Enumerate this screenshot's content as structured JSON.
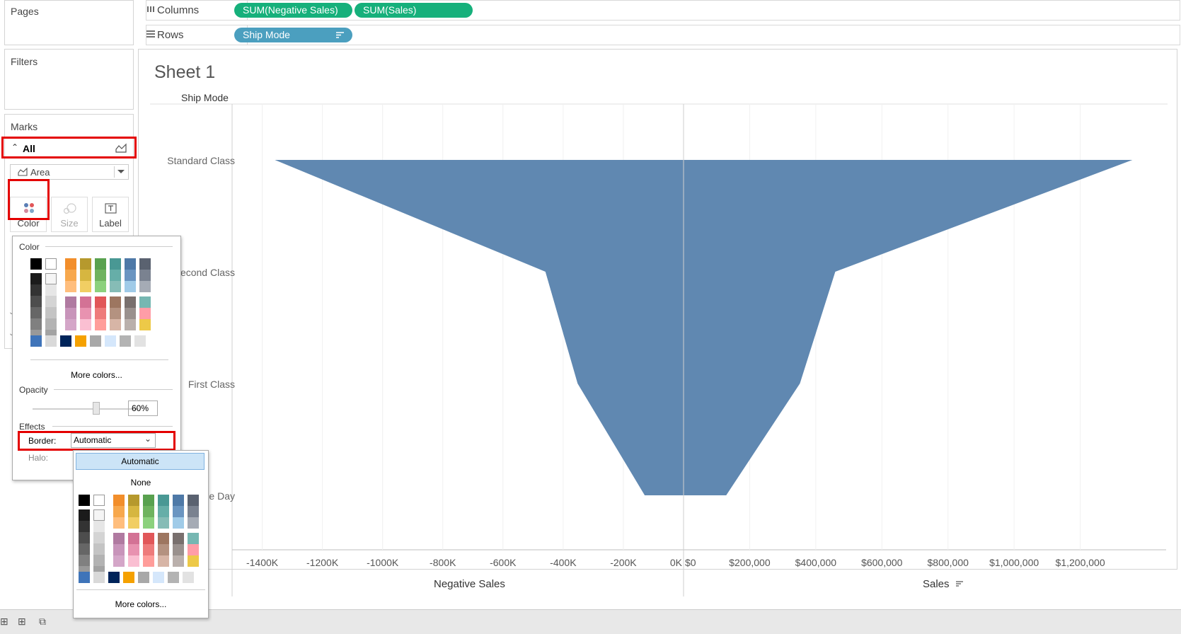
{
  "left_panel": {
    "pages_title": "Pages",
    "filters_title": "Filters",
    "marks_title": "Marks",
    "marks_all_label": "All",
    "mark_type": "Area",
    "mark_buttons": {
      "color": "Color",
      "size": "Size",
      "label": "Label"
    }
  },
  "shelves": {
    "columns_label": "Columns",
    "rows_label": "Rows",
    "columns_pills": [
      "SUM(Negative Sales)",
      "SUM(Sales)"
    ],
    "rows_pills": [
      "Ship Mode"
    ]
  },
  "sheet": {
    "title": "Sheet 1",
    "row_header": "Ship Mode"
  },
  "color_popup": {
    "color_section": "Color",
    "more_colors": "More colors...",
    "opacity_section": "Opacity",
    "opacity_value": "60%",
    "opacity_fraction": 0.6,
    "effects_section": "Effects",
    "border_label": "Border:",
    "border_value": "Automatic",
    "halo_label": "Halo:"
  },
  "border_dropdown": {
    "options": [
      "Automatic",
      "None"
    ],
    "selected": "Automatic",
    "more_colors": "More colors..."
  },
  "palette": {
    "mono_top": [
      "#000000",
      "#ffffff"
    ],
    "gray_dark": [
      "#1b1b1b",
      "#333333",
      "#4d4d4d",
      "#666666",
      "#808080",
      "#999999"
    ],
    "gray_light": [
      "#f5f5f5",
      "#e6e6e6",
      "#d4d4d4",
      "#c4c4c4",
      "#b3b3b3",
      "#a3a3a3"
    ],
    "columns_top": [
      [
        "#f28e2b",
        "#f7a84d",
        "#ffbe7d"
      ],
      [
        "#b6992d",
        "#d6b640",
        "#f1ce63"
      ],
      [
        "#59a14f",
        "#6fb35f",
        "#8cd17d"
      ],
      [
        "#499894",
        "#66aea8",
        "#86bcb6"
      ],
      [
        "#4e79a7",
        "#6a95c1",
        "#a0cbe8"
      ],
      [
        "#5a6270",
        "#7a8290",
        "#a5abb5"
      ]
    ],
    "columns_bottom": [
      [
        "#b07aa1",
        "#c894ba",
        "#d4a6c8"
      ],
      [
        "#d37295",
        "#e892b0",
        "#fabfd2"
      ],
      [
        "#e15759",
        "#ee7b7b",
        "#ff9d9a"
      ],
      [
        "#9d7660",
        "#b49280",
        "#d7b5a6"
      ],
      [
        "#79706e",
        "#9a918e",
        "#bab0ac"
      ],
      [
        "#76b7b2",
        "#ff9da7",
        "#edc948"
      ]
    ],
    "bottom_row": [
      "#3f74b9",
      "#d9d9d9",
      "#00245a",
      "#f5a100",
      "#a8a8a8",
      "#d5e7fb",
      "#b3b3b3",
      "#e2e2e2"
    ]
  },
  "chart_data": {
    "type": "area",
    "categories": [
      "Standard Class",
      "Second Class",
      "First Class",
      "Same Day"
    ],
    "left_panel": {
      "xlabel": "Negative Sales",
      "xlim": [
        -1500000,
        0
      ],
      "ticks": [
        "-1400K",
        "-1200K",
        "-1000K",
        "-800K",
        "-600K",
        "-400K",
        "-200K",
        "0K"
      ],
      "values": [
        -1358000,
        -459000,
        -352000,
        -129000
      ]
    },
    "right_panel": {
      "xlabel": "Sales",
      "xlim": [
        0,
        1400000
      ],
      "ticks": [
        "$0",
        "$200,000",
        "$400,000",
        "$600,000",
        "$800,000",
        "$1,000,000",
        "$1,200,000"
      ],
      "values": [
        1358000,
        459000,
        352000,
        129000
      ]
    },
    "fill_color": "#6088b1",
    "grid": true
  },
  "colors": {
    "accent_red": "#e40000",
    "pill_green": "#16b07b",
    "pill_blue": "#4b9fbf"
  }
}
